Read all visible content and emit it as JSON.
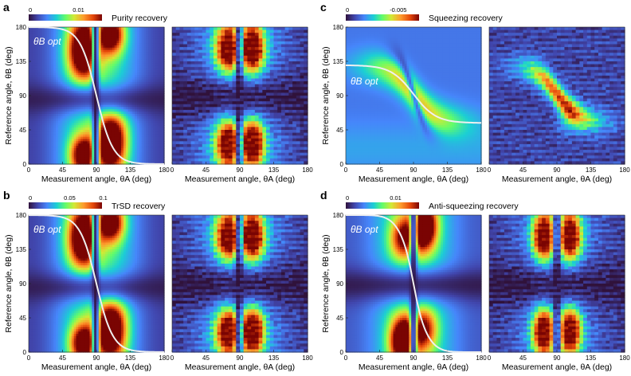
{
  "panels": [
    {
      "letter": "a",
      "title": "Purity recovery",
      "colorbar_ticks": [
        "0",
        "0.01"
      ],
      "xlabel": "Measurement angle, θA (deg)",
      "ylabel": "Reference angle, θB (deg)",
      "curve_label": "θB opt",
      "curve": "purity"
    },
    {
      "letter": "b",
      "title": "TrSD recovery",
      "colorbar_ticks": [
        "0",
        "0.05",
        "0.1"
      ],
      "xlabel": "Measurement angle, θA (deg)",
      "ylabel": "Reference angle, θB (deg)",
      "curve_label": "θB opt",
      "curve": "purity"
    },
    {
      "letter": "c",
      "title": "Squeezing recovery",
      "colorbar_ticks": [
        "0",
        "-0.005"
      ],
      "xlabel": "Measurement angle, θA (deg)",
      "ylabel": "Reference angle, θB (deg)",
      "curve_label": "θB opt",
      "curve": "squeezing"
    },
    {
      "letter": "d",
      "title": "Anti-squeezing recovery",
      "colorbar_ticks": [
        "0",
        "0.01"
      ],
      "xlabel": "Measurement angle, θA (deg)",
      "ylabel": "Reference angle, θB (deg)",
      "curve_label": "θB opt",
      "curve": "antisqueezing"
    }
  ],
  "axis": {
    "xticks": [
      0,
      45,
      90,
      135,
      180
    ],
    "yticks": [
      0,
      45,
      90,
      135,
      180
    ],
    "xlim": [
      0,
      180
    ],
    "ylim": [
      0,
      180
    ]
  },
  "colors": {
    "curve": "#f0f0f0",
    "colormap": [
      "#30123b",
      "#4146ad",
      "#4686fb",
      "#1bcfd4",
      "#62fc6b",
      "#d2e935",
      "#fe9b2d",
      "#e4460a",
      "#7a0403"
    ]
  }
}
